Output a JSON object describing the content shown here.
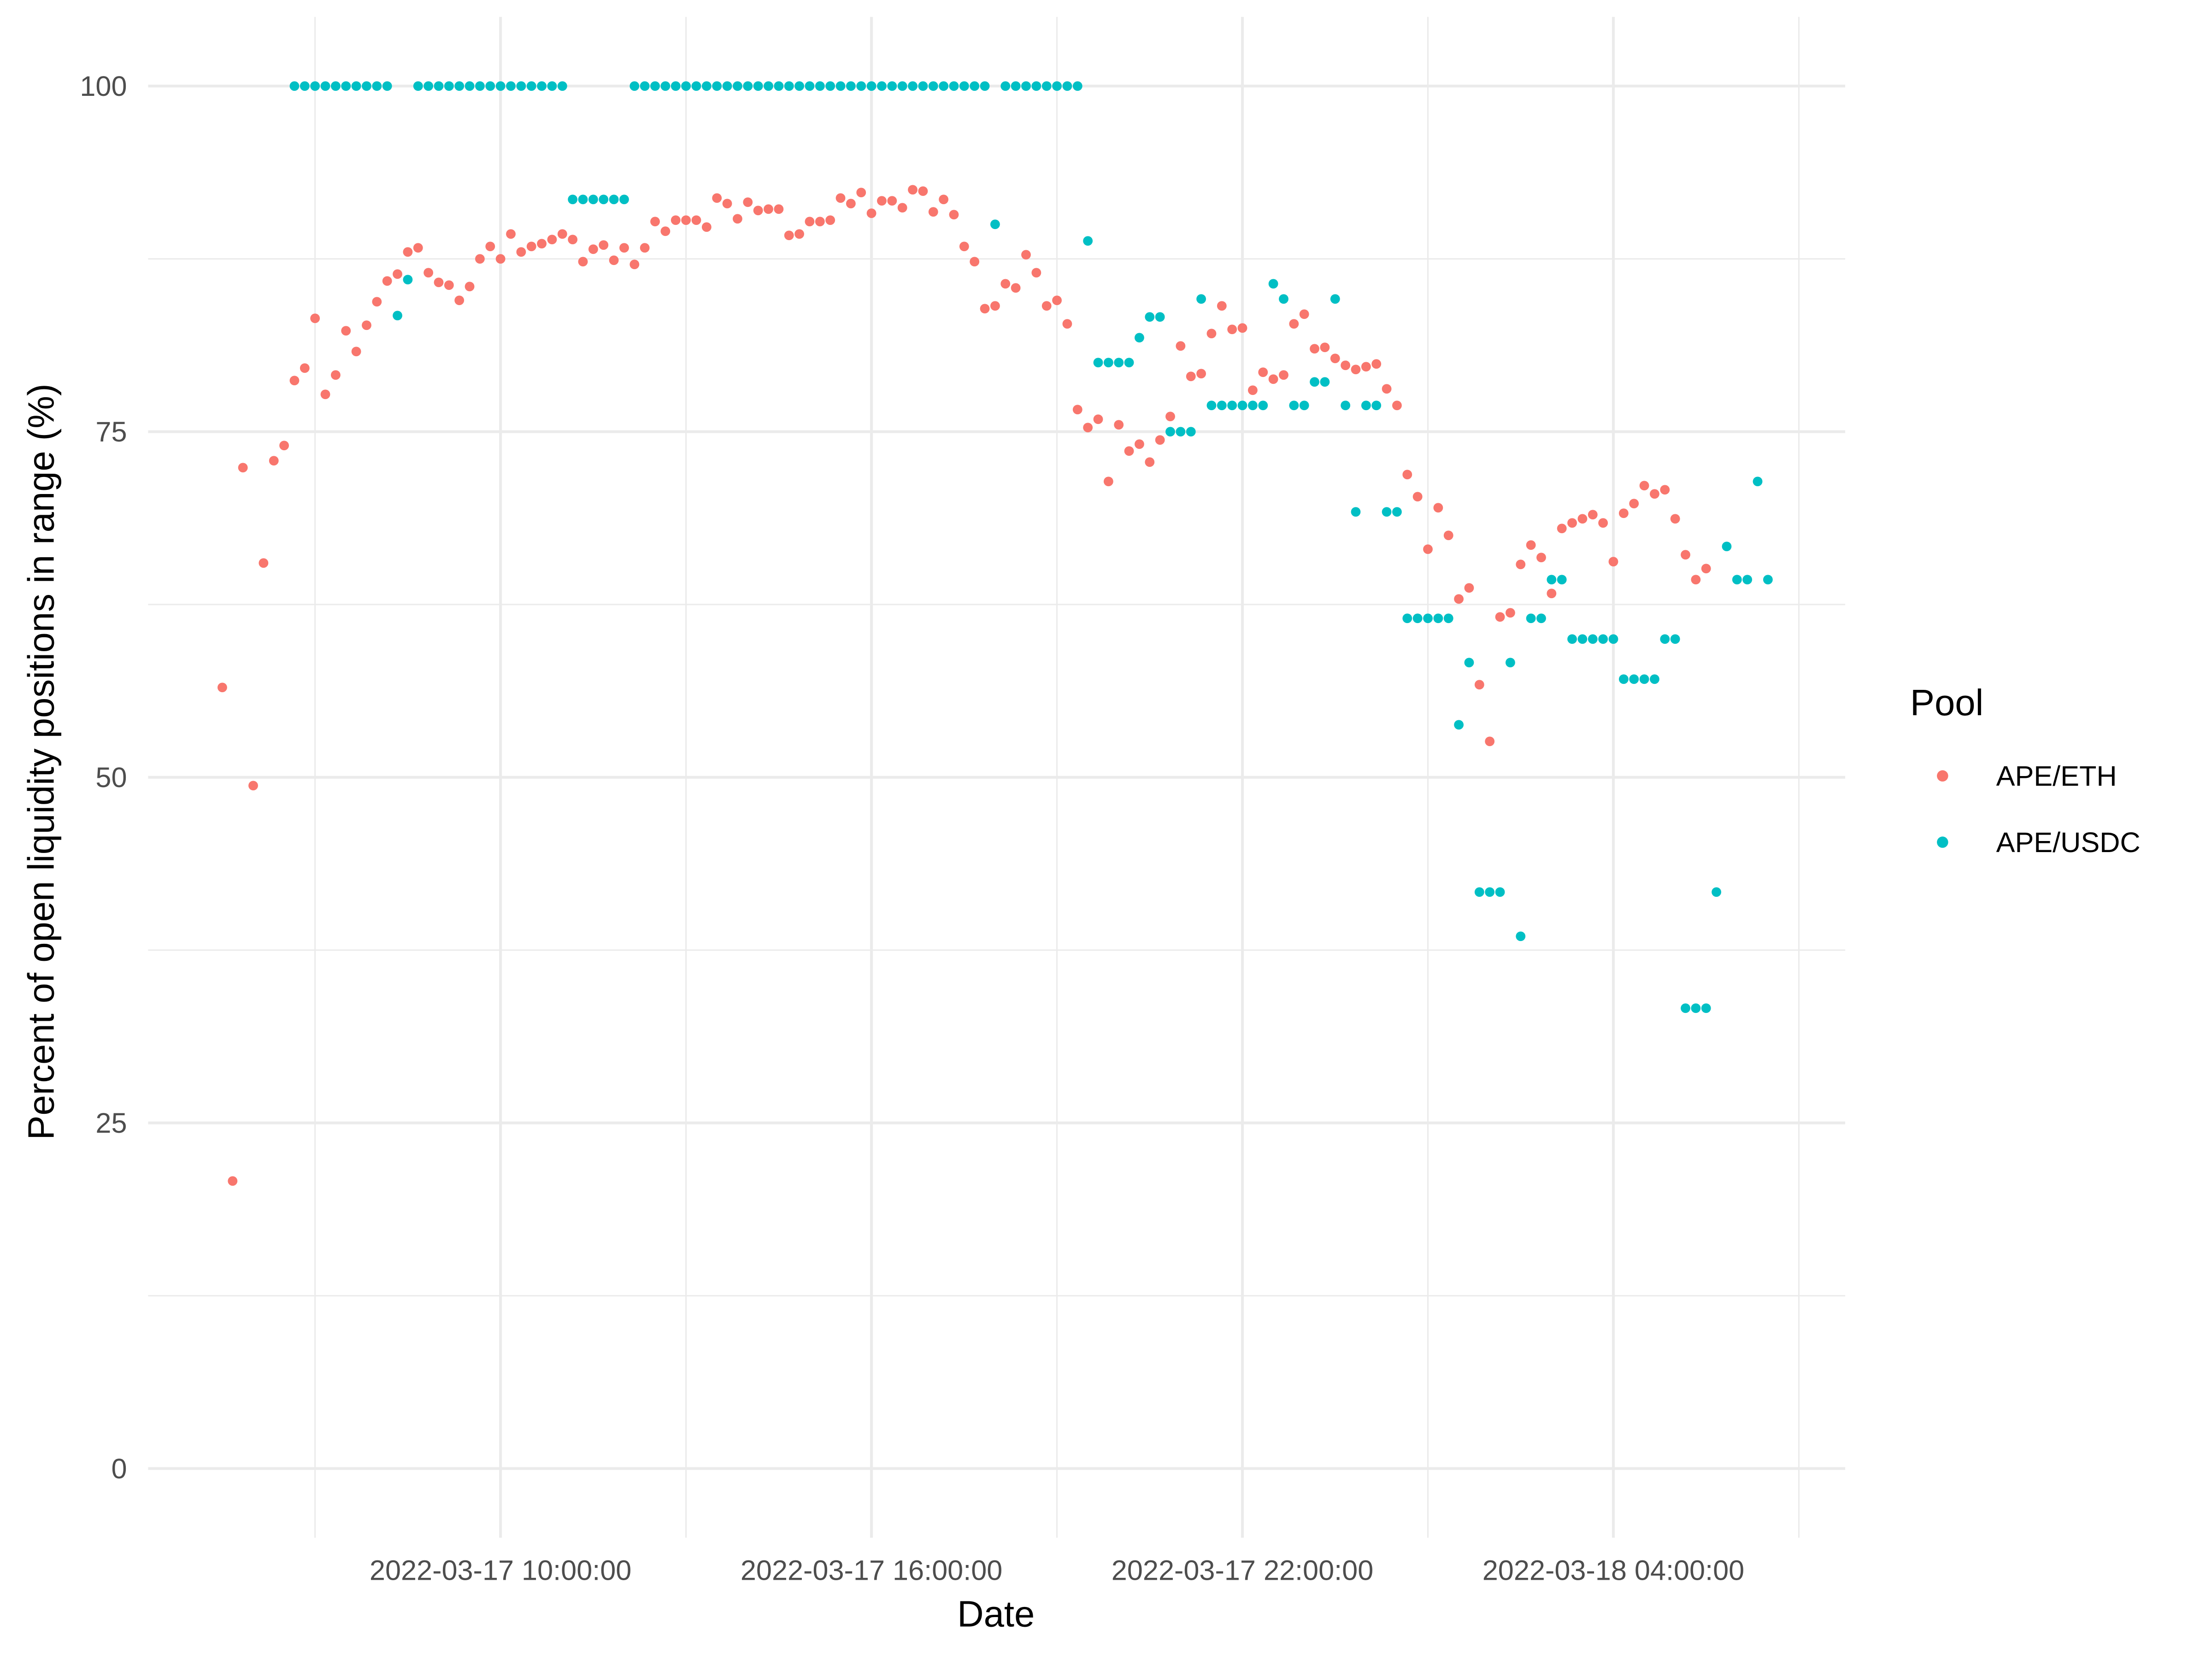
{
  "chart_data": {
    "type": "scatter",
    "x_label": "Date",
    "y_label": "Percent of open liquidity positions in range (%)",
    "legend_title": "Pool",
    "legend": "right",
    "grid": true,
    "xlim": [
      "2022-03-17 04:18:00",
      "2022-03-18 07:45:00"
    ],
    "xticks": [
      "2022-03-17 10:00:00",
      "2022-03-17 16:00:00",
      "2022-03-17 22:00:00",
      "2022-03-18 04:00:00"
    ],
    "ylim": [
      -5,
      105
    ],
    "yticks": [
      0,
      25,
      50,
      75,
      100
    ],
    "x": [
      "2022-03-17 05:30:00",
      "2022-03-17 05:40:00",
      "2022-03-17 05:50:00",
      "2022-03-17 06:00:00",
      "2022-03-17 06:10:00",
      "2022-03-17 06:20:00",
      "2022-03-17 06:30:00",
      "2022-03-17 06:40:00",
      "2022-03-17 06:50:00",
      "2022-03-17 07:00:00",
      "2022-03-17 07:10:00",
      "2022-03-17 07:20:00",
      "2022-03-17 07:30:00",
      "2022-03-17 07:40:00",
      "2022-03-17 07:50:00",
      "2022-03-17 08:00:00",
      "2022-03-17 08:10:00",
      "2022-03-17 08:20:00",
      "2022-03-17 08:30:00",
      "2022-03-17 08:40:00",
      "2022-03-17 08:50:00",
      "2022-03-17 09:00:00",
      "2022-03-17 09:10:00",
      "2022-03-17 09:20:00",
      "2022-03-17 09:30:00",
      "2022-03-17 09:40:00",
      "2022-03-17 09:50:00",
      "2022-03-17 10:00:00",
      "2022-03-17 10:10:00",
      "2022-03-17 10:20:00",
      "2022-03-17 10:30:00",
      "2022-03-17 10:40:00",
      "2022-03-17 10:50:00",
      "2022-03-17 11:00:00",
      "2022-03-17 11:10:00",
      "2022-03-17 11:20:00",
      "2022-03-17 11:30:00",
      "2022-03-17 11:40:00",
      "2022-03-17 11:50:00",
      "2022-03-17 12:00:00",
      "2022-03-17 12:10:00",
      "2022-03-17 12:20:00",
      "2022-03-17 12:30:00",
      "2022-03-17 12:40:00",
      "2022-03-17 12:50:00",
      "2022-03-17 13:00:00",
      "2022-03-17 13:10:00",
      "2022-03-17 13:20:00",
      "2022-03-17 13:30:00",
      "2022-03-17 13:40:00",
      "2022-03-17 13:50:00",
      "2022-03-17 14:00:00",
      "2022-03-17 14:10:00",
      "2022-03-17 14:20:00",
      "2022-03-17 14:30:00",
      "2022-03-17 14:40:00",
      "2022-03-17 14:50:00",
      "2022-03-17 15:00:00",
      "2022-03-17 15:10:00",
      "2022-03-17 15:20:00",
      "2022-03-17 15:30:00",
      "2022-03-17 15:40:00",
      "2022-03-17 15:50:00",
      "2022-03-17 16:00:00",
      "2022-03-17 16:10:00",
      "2022-03-17 16:20:00",
      "2022-03-17 16:30:00",
      "2022-03-17 16:40:00",
      "2022-03-17 16:50:00",
      "2022-03-17 17:00:00",
      "2022-03-17 17:10:00",
      "2022-03-17 17:20:00",
      "2022-03-17 17:30:00",
      "2022-03-17 17:40:00",
      "2022-03-17 17:50:00",
      "2022-03-17 18:00:00",
      "2022-03-17 18:10:00",
      "2022-03-17 18:20:00",
      "2022-03-17 18:30:00",
      "2022-03-17 18:40:00",
      "2022-03-17 18:50:00",
      "2022-03-17 19:00:00",
      "2022-03-17 19:10:00",
      "2022-03-17 19:20:00",
      "2022-03-17 19:30:00",
      "2022-03-17 19:40:00",
      "2022-03-17 19:50:00",
      "2022-03-17 20:00:00",
      "2022-03-17 20:10:00",
      "2022-03-17 20:20:00",
      "2022-03-17 20:30:00",
      "2022-03-17 20:40:00",
      "2022-03-17 20:50:00",
      "2022-03-17 21:00:00",
      "2022-03-17 21:10:00",
      "2022-03-17 21:20:00",
      "2022-03-17 21:30:00",
      "2022-03-17 21:40:00",
      "2022-03-17 21:50:00",
      "2022-03-17 22:00:00",
      "2022-03-17 22:10:00",
      "2022-03-17 22:20:00",
      "2022-03-17 22:30:00",
      "2022-03-17 22:40:00",
      "2022-03-17 22:50:00",
      "2022-03-17 23:00:00",
      "2022-03-17 23:10:00",
      "2022-03-17 23:20:00",
      "2022-03-17 23:30:00",
      "2022-03-17 23:40:00",
      "2022-03-17 23:50:00",
      "2022-03-18 00:00:00",
      "2022-03-18 00:10:00",
      "2022-03-18 00:20:00",
      "2022-03-18 00:30:00",
      "2022-03-18 00:40:00",
      "2022-03-18 00:50:00",
      "2022-03-18 01:00:00",
      "2022-03-18 01:10:00",
      "2022-03-18 01:20:00",
      "2022-03-18 01:30:00",
      "2022-03-18 01:40:00",
      "2022-03-18 01:50:00",
      "2022-03-18 02:00:00",
      "2022-03-18 02:10:00",
      "2022-03-18 02:20:00",
      "2022-03-18 02:30:00",
      "2022-03-18 02:40:00",
      "2022-03-18 02:50:00",
      "2022-03-18 03:00:00",
      "2022-03-18 03:10:00",
      "2022-03-18 03:20:00",
      "2022-03-18 03:30:00",
      "2022-03-18 03:40:00",
      "2022-03-18 03:50:00",
      "2022-03-18 04:00:00",
      "2022-03-18 04:10:00",
      "2022-03-18 04:20:00",
      "2022-03-18 04:30:00",
      "2022-03-18 04:40:00",
      "2022-03-18 04:50:00",
      "2022-03-18 05:00:00",
      "2022-03-18 05:10:00",
      "2022-03-18 05:20:00",
      "2022-03-18 05:30:00",
      "2022-03-18 05:40:00",
      "2022-03-18 05:50:00",
      "2022-03-18 06:00:00",
      "2022-03-18 06:10:00",
      "2022-03-18 06:20:00",
      "2022-03-18 06:30:00"
    ],
    "series": [
      {
        "name": "APE/ETH",
        "color": "#F8766D",
        "values": [
          56.5,
          20.8,
          72.4,
          49.4,
          65.5,
          72.9,
          74.0,
          78.7,
          79.6,
          83.2,
          77.7,
          79.1,
          82.3,
          80.8,
          82.7,
          84.4,
          85.9,
          86.4,
          88.0,
          88.3,
          86.5,
          85.8,
          85.6,
          84.5,
          85.5,
          87.5,
          88.4,
          87.5,
          89.3,
          88.0,
          88.4,
          88.6,
          88.9,
          89.3,
          88.9,
          87.3,
          88.2,
          88.5,
          87.4,
          88.3,
          87.1,
          88.3,
          90.2,
          89.5,
          90.3,
          90.3,
          90.3,
          89.8,
          91.9,
          91.5,
          90.4,
          91.6,
          91.0,
          91.1,
          91.1,
          89.2,
          89.3,
          90.2,
          90.2,
          90.3,
          91.9,
          91.5,
          92.3,
          90.8,
          91.7,
          91.7,
          91.2,
          92.5,
          92.4,
          90.9,
          91.8,
          90.7,
          88.4,
          87.3,
          83.9,
          84.1,
          85.7,
          85.4,
          87.8,
          86.5,
          84.1,
          84.5,
          82.8,
          76.6,
          75.3,
          75.9,
          71.4,
          75.5,
          73.6,
          74.1,
          72.8,
          74.4,
          76.1,
          81.2,
          79.0,
          79.2,
          82.1,
          84.1,
          82.4,
          82.5,
          78.0,
          79.3,
          78.8,
          79.1,
          82.8,
          83.5,
          81.0,
          81.1,
          80.3,
          79.8,
          79.5,
          79.7,
          79.9,
          78.1,
          76.9,
          71.9,
          70.3,
          66.5,
          69.5,
          67.5,
          62.9,
          63.7,
          56.7,
          52.6,
          61.6,
          61.9,
          65.4,
          66.8,
          65.9,
          63.3,
          68.0,
          68.4,
          68.7,
          69.0,
          68.4,
          65.6,
          69.1,
          69.8,
          71.1,
          70.5,
          70.8,
          68.7,
          66.1,
          64.3,
          65.1,
          null,
          null,
          null,
          null,
          null,
          null
        ]
      },
      {
        "name": "APE/USDC",
        "color": "#00BFC4",
        "values": [
          null,
          null,
          null,
          null,
          null,
          null,
          null,
          100,
          100,
          100,
          100,
          100,
          100,
          100,
          100,
          100,
          100,
          83.4,
          86.0,
          100,
          100,
          100,
          100,
          100,
          100,
          100,
          100,
          100,
          100,
          100,
          100,
          100,
          100,
          100,
          91.8,
          91.8,
          91.8,
          91.8,
          91.8,
          91.8,
          100,
          100,
          100,
          100,
          100,
          100,
          100,
          100,
          100,
          100,
          100,
          100,
          100,
          100,
          100,
          100,
          100,
          100,
          100,
          100,
          100,
          100,
          100,
          100,
          100,
          100,
          100,
          100,
          100,
          100,
          100,
          100,
          100,
          100,
          100,
          90.0,
          100,
          100,
          100,
          100,
          100,
          100,
          100,
          100,
          88.8,
          80.0,
          80.0,
          80.0,
          80.0,
          81.8,
          83.3,
          83.3,
          75.0,
          75.0,
          75.0,
          84.6,
          76.9,
          76.9,
          76.9,
          76.9,
          76.9,
          76.9,
          85.7,
          84.6,
          76.9,
          76.9,
          78.6,
          78.6,
          84.6,
          76.9,
          69.2,
          76.9,
          76.9,
          69.2,
          69.2,
          61.5,
          61.5,
          61.5,
          61.5,
          61.5,
          53.8,
          58.3,
          41.7,
          41.7,
          41.7,
          58.3,
          38.5,
          61.5,
          61.5,
          64.3,
          64.3,
          60.0,
          60.0,
          60.0,
          60.0,
          60.0,
          57.1,
          57.1,
          57.1,
          57.1,
          60.0,
          60.0,
          33.3,
          33.3,
          33.3,
          41.7,
          66.7,
          64.3,
          64.3,
          71.4,
          64.3
        ]
      }
    ]
  }
}
